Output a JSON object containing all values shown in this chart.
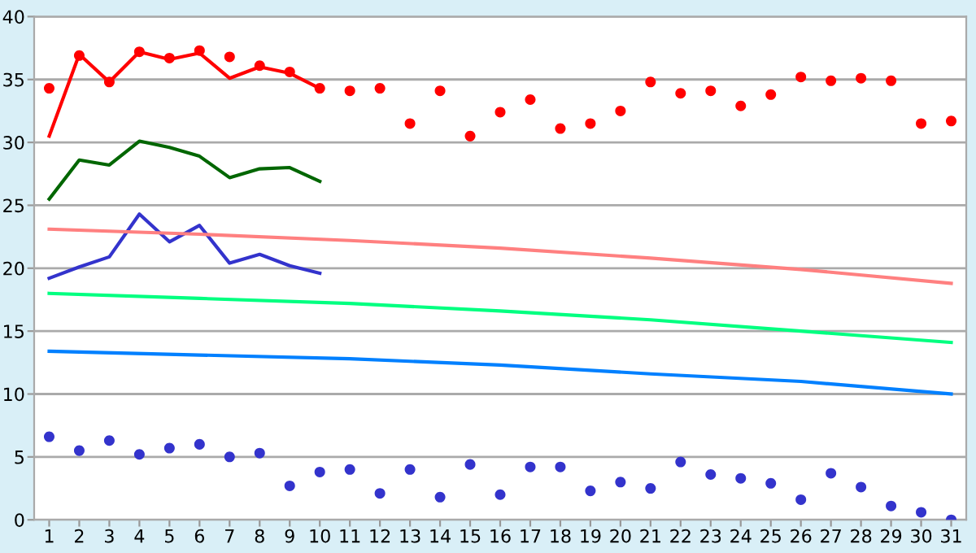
{
  "chart_data": {
    "type": "line",
    "x": [
      1,
      2,
      3,
      4,
      5,
      6,
      7,
      8,
      9,
      10,
      11,
      12,
      13,
      14,
      15,
      16,
      17,
      18,
      19,
      20,
      21,
      22,
      23,
      24,
      25,
      26,
      27,
      28,
      29,
      30,
      31
    ],
    "xlim": [
      0.5,
      31.5
    ],
    "xticks": [
      1,
      2,
      3,
      4,
      5,
      6,
      7,
      8,
      9,
      10,
      11,
      12,
      13,
      14,
      15,
      16,
      17,
      18,
      19,
      20,
      21,
      22,
      23,
      24,
      25,
      26,
      27,
      28,
      29,
      30,
      31
    ],
    "ylim": [
      0,
      40
    ],
    "yticks": [
      0,
      5,
      10,
      15,
      20,
      25,
      30,
      35,
      40
    ],
    "grid": "y",
    "series": [
      {
        "color": "#ff0000",
        "x": [
          1,
          2,
          3,
          4,
          5,
          6,
          7,
          8,
          9,
          10
        ],
        "values": [
          30.5,
          37.0,
          34.8,
          37.2,
          36.6,
          37.1,
          35.1,
          36.0,
          35.5,
          34.3
        ]
      },
      {
        "type": "scatter",
        "marker": "circle",
        "color": "#ff0000",
        "values": [
          34.3,
          36.9,
          34.8,
          37.2,
          36.7,
          37.3,
          36.8,
          36.1,
          35.6,
          34.3,
          34.1,
          34.3,
          31.5,
          34.1,
          30.5,
          32.4,
          33.4,
          31.1,
          31.5,
          32.5,
          34.8,
          33.9,
          34.1,
          32.9,
          33.8,
          35.2,
          34.9,
          35.1,
          34.9,
          31.5,
          31.7
        ]
      },
      {
        "color": "#006600",
        "x": [
          1,
          2,
          3,
          4,
          5,
          6,
          7,
          8,
          9,
          10
        ],
        "values": [
          25.5,
          28.6,
          28.2,
          30.1,
          29.6,
          28.9,
          27.2,
          27.9,
          28.0,
          26.9
        ]
      },
      {
        "color": "#3333cc",
        "x": [
          1,
          2,
          3,
          4,
          5,
          6,
          7,
          8,
          9,
          10
        ],
        "values": [
          19.2,
          20.1,
          20.9,
          24.3,
          22.1,
          23.4,
          20.4,
          21.1,
          20.2,
          19.6
        ]
      },
      {
        "color": "#ff8080",
        "x": [
          1,
          6,
          11,
          16,
          21,
          26,
          31
        ],
        "values": [
          23.1,
          22.7,
          22.2,
          21.6,
          20.8,
          19.9,
          18.8
        ]
      },
      {
        "color": "#00ff80",
        "x": [
          1,
          6,
          11,
          16,
          21,
          26,
          31
        ],
        "values": [
          18.0,
          17.6,
          17.2,
          16.6,
          15.9,
          15.0,
          14.1
        ]
      },
      {
        "color": "#0080ff",
        "x": [
          1,
          6,
          11,
          16,
          21,
          26,
          31
        ],
        "values": [
          13.4,
          13.1,
          12.8,
          12.3,
          11.6,
          11.0,
          10.0
        ]
      },
      {
        "type": "scatter",
        "marker": "circle",
        "color": "#3333cc",
        "values": [
          6.6,
          5.5,
          6.3,
          5.2,
          5.7,
          6.0,
          5.0,
          5.3,
          2.7,
          3.8,
          4.0,
          2.1,
          4.0,
          1.8,
          4.4,
          2.0,
          4.2,
          4.2,
          2.3,
          3.0,
          2.5,
          4.6,
          3.6,
          3.3,
          2.9,
          1.6,
          3.7,
          2.6,
          1.1,
          0.6,
          0.0
        ]
      }
    ]
  }
}
